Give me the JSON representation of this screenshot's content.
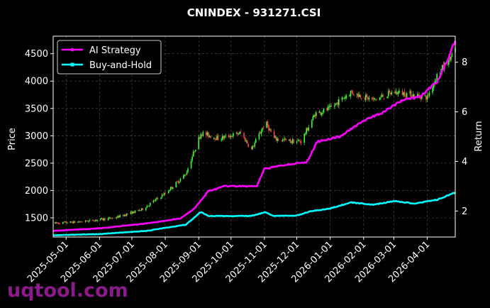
{
  "chart_data": {
    "type": "line",
    "title": "CNINDEX - 931271.CSI",
    "ylabel": "Price",
    "y2label": "Return",
    "ylim": [
      1150,
      4820
    ],
    "y2lim": [
      0.95,
      9.05
    ],
    "yticks": [
      1500,
      2000,
      2500,
      3000,
      3500,
      4000,
      4500
    ],
    "y2ticks": [
      2,
      4,
      6,
      8
    ],
    "xlim": [
      "2025-04-19",
      "2026-04-27"
    ],
    "xticks": [
      "2025-05-01",
      "2025-06-01",
      "2025-07-01",
      "2025-08-01",
      "2025-09-01",
      "2025-10-01",
      "2025-11-01",
      "2025-12-01",
      "2026-01-01",
      "2026-02-01",
      "2026-03-01",
      "2026-04-01"
    ],
    "grid": true,
    "legend_position": "top-left",
    "up_color": "#33ff33",
    "down_color": "#ff4444",
    "candles": {
      "price_keypoints": [
        [
          "2025-04-19",
          1400
        ],
        [
          "2025-05-15",
          1430
        ],
        [
          "2025-06-15",
          1500
        ],
        [
          "2025-07-10",
          1650
        ],
        [
          "2025-08-01",
          1950
        ],
        [
          "2025-08-20",
          2300
        ],
        [
          "2025-09-03",
          3050
        ],
        [
          "2025-09-20",
          2950
        ],
        [
          "2025-10-10",
          3050
        ],
        [
          "2025-10-20",
          2750
        ],
        [
          "2025-11-02",
          3250
        ],
        [
          "2025-11-10",
          2950
        ],
        [
          "2025-11-25",
          2900
        ],
        [
          "2025-12-05",
          2900
        ],
        [
          "2025-12-18",
          3400
        ],
        [
          "2026-01-01",
          3500
        ],
        [
          "2026-01-20",
          3800
        ],
        [
          "2026-02-10",
          3650
        ],
        [
          "2026-03-01",
          3800
        ],
        [
          "2026-03-20",
          3750
        ],
        [
          "2026-04-01",
          3700
        ],
        [
          "2026-04-10",
          4100
        ],
        [
          "2026-04-27",
          4550
        ]
      ]
    },
    "series": [
      {
        "name": "AI Strategy",
        "color": "#ff00ff",
        "axis": "right",
        "points": [
          [
            "2025-04-19",
            1.2
          ],
          [
            "2025-06-01",
            1.3
          ],
          [
            "2025-07-15",
            1.5
          ],
          [
            "2025-08-15",
            1.7
          ],
          [
            "2025-08-28",
            2.1
          ],
          [
            "2025-09-10",
            2.8
          ],
          [
            "2025-09-25",
            3.0
          ],
          [
            "2025-10-25",
            3.0
          ],
          [
            "2025-11-01",
            3.7
          ],
          [
            "2025-11-25",
            3.9
          ],
          [
            "2025-12-10",
            3.95
          ],
          [
            "2025-12-20",
            4.8
          ],
          [
            "2026-01-10",
            5.0
          ],
          [
            "2026-01-30",
            5.6
          ],
          [
            "2026-02-20",
            6.0
          ],
          [
            "2026-03-10",
            6.5
          ],
          [
            "2026-03-25",
            6.6
          ],
          [
            "2026-04-10",
            7.2
          ],
          [
            "2026-04-20",
            8.1
          ],
          [
            "2026-04-27",
            8.9
          ]
        ]
      },
      {
        "name": "Buy-and-Hold",
        "color": "#00ffff",
        "axis": "right",
        "points": [
          [
            "2025-04-19",
            1.02
          ],
          [
            "2025-06-01",
            1.07
          ],
          [
            "2025-07-15",
            1.2
          ],
          [
            "2025-08-20",
            1.45
          ],
          [
            "2025-09-03",
            1.96
          ],
          [
            "2025-09-10",
            1.8
          ],
          [
            "2025-10-20",
            1.8
          ],
          [
            "2025-11-01",
            1.95
          ],
          [
            "2025-11-10",
            1.8
          ],
          [
            "2025-12-01",
            1.82
          ],
          [
            "2025-12-15",
            2.0
          ],
          [
            "2026-01-01",
            2.1
          ],
          [
            "2026-01-20",
            2.35
          ],
          [
            "2026-02-10",
            2.25
          ],
          [
            "2026-03-01",
            2.4
          ],
          [
            "2026-03-20",
            2.3
          ],
          [
            "2026-04-10",
            2.45
          ],
          [
            "2026-04-27",
            2.75
          ]
        ]
      }
    ]
  },
  "watermark": "uqtool.com"
}
